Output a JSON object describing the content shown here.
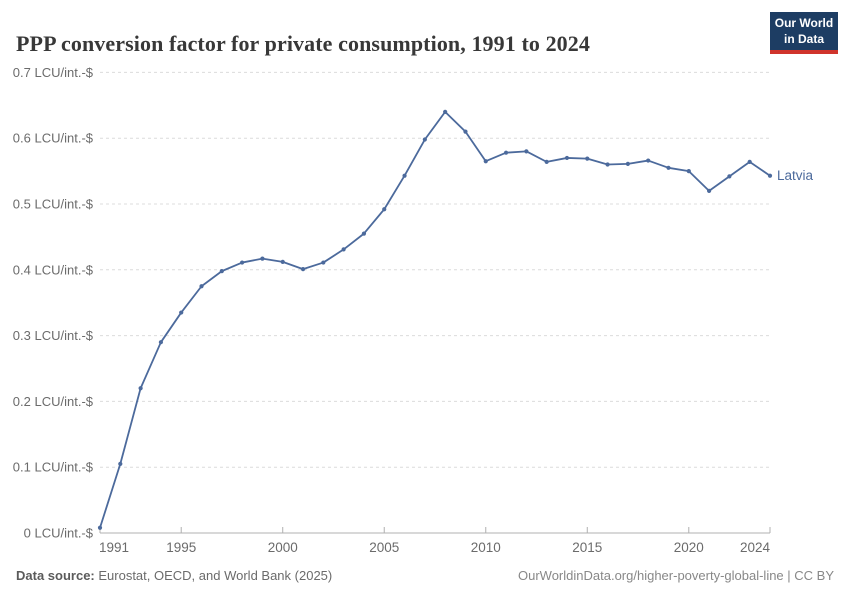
{
  "header": {
    "title": "PPP conversion factor for private consumption, 1991 to 2024"
  },
  "logo": {
    "line1": "Our World",
    "line2": "in Data",
    "bg_color": "#1d3d63",
    "accent_color": "#d0342c"
  },
  "chart_data": {
    "type": "line",
    "title": "PPP conversion factor for private consumption, 1991 to 2024",
    "xlabel": "",
    "ylabel": "",
    "unit": "LCU/int.-$",
    "xlim": [
      1991,
      2024
    ],
    "ylim": [
      0,
      0.7
    ],
    "grid": "horizontal-dashed",
    "legend_position": "end-of-line-label",
    "x": [
      1991,
      1992,
      1993,
      1994,
      1995,
      1996,
      1997,
      1998,
      1999,
      2000,
      2001,
      2002,
      2003,
      2004,
      2005,
      2006,
      2007,
      2008,
      2009,
      2010,
      2011,
      2012,
      2013,
      2014,
      2015,
      2016,
      2017,
      2018,
      2019,
      2020,
      2021,
      2022,
      2023,
      2024
    ],
    "series": [
      {
        "name": "Latvia",
        "color": "#4C6A9C",
        "values": [
          0.008,
          0.105,
          0.22,
          0.29,
          0.335,
          0.375,
          0.398,
          0.411,
          0.417,
          0.412,
          0.401,
          0.411,
          0.431,
          0.455,
          0.492,
          0.543,
          0.598,
          0.64,
          0.61,
          0.565,
          0.578,
          0.58,
          0.564,
          0.57,
          0.569,
          0.56,
          0.561,
          0.566,
          0.555,
          0.55,
          0.52,
          0.542,
          0.564,
          0.543
        ]
      }
    ],
    "yticks": [
      {
        "value": 0,
        "label": "0 LCU/int.-$"
      },
      {
        "value": 0.1,
        "label": "0.1 LCU/int.-$"
      },
      {
        "value": 0.2,
        "label": "0.2 LCU/int.-$"
      },
      {
        "value": 0.3,
        "label": "0.3 LCU/int.-$"
      },
      {
        "value": 0.4,
        "label": "0.4 LCU/int.-$"
      },
      {
        "value": 0.5,
        "label": "0.5 LCU/int.-$"
      },
      {
        "value": 0.6,
        "label": "0.6 LCU/int.-$"
      },
      {
        "value": 0.7,
        "label": "0.7 LCU/int.-$"
      }
    ],
    "xticks": [
      1991,
      1995,
      2000,
      2005,
      2010,
      2015,
      2020,
      2024
    ],
    "entity_label": "Latvia"
  },
  "footer": {
    "source_label": "Data source:",
    "source_text": " Eurostat, OECD, and World Bank (2025)",
    "credit": "OurWorldinData.org/higher-poverty-global-line | CC BY"
  },
  "colors": {
    "line": "#4C6A9C",
    "gridline": "#dcdcdc",
    "axis": "#b0b0b0",
    "tick_label": "#6b6b6b",
    "title_text": "#383838"
  }
}
